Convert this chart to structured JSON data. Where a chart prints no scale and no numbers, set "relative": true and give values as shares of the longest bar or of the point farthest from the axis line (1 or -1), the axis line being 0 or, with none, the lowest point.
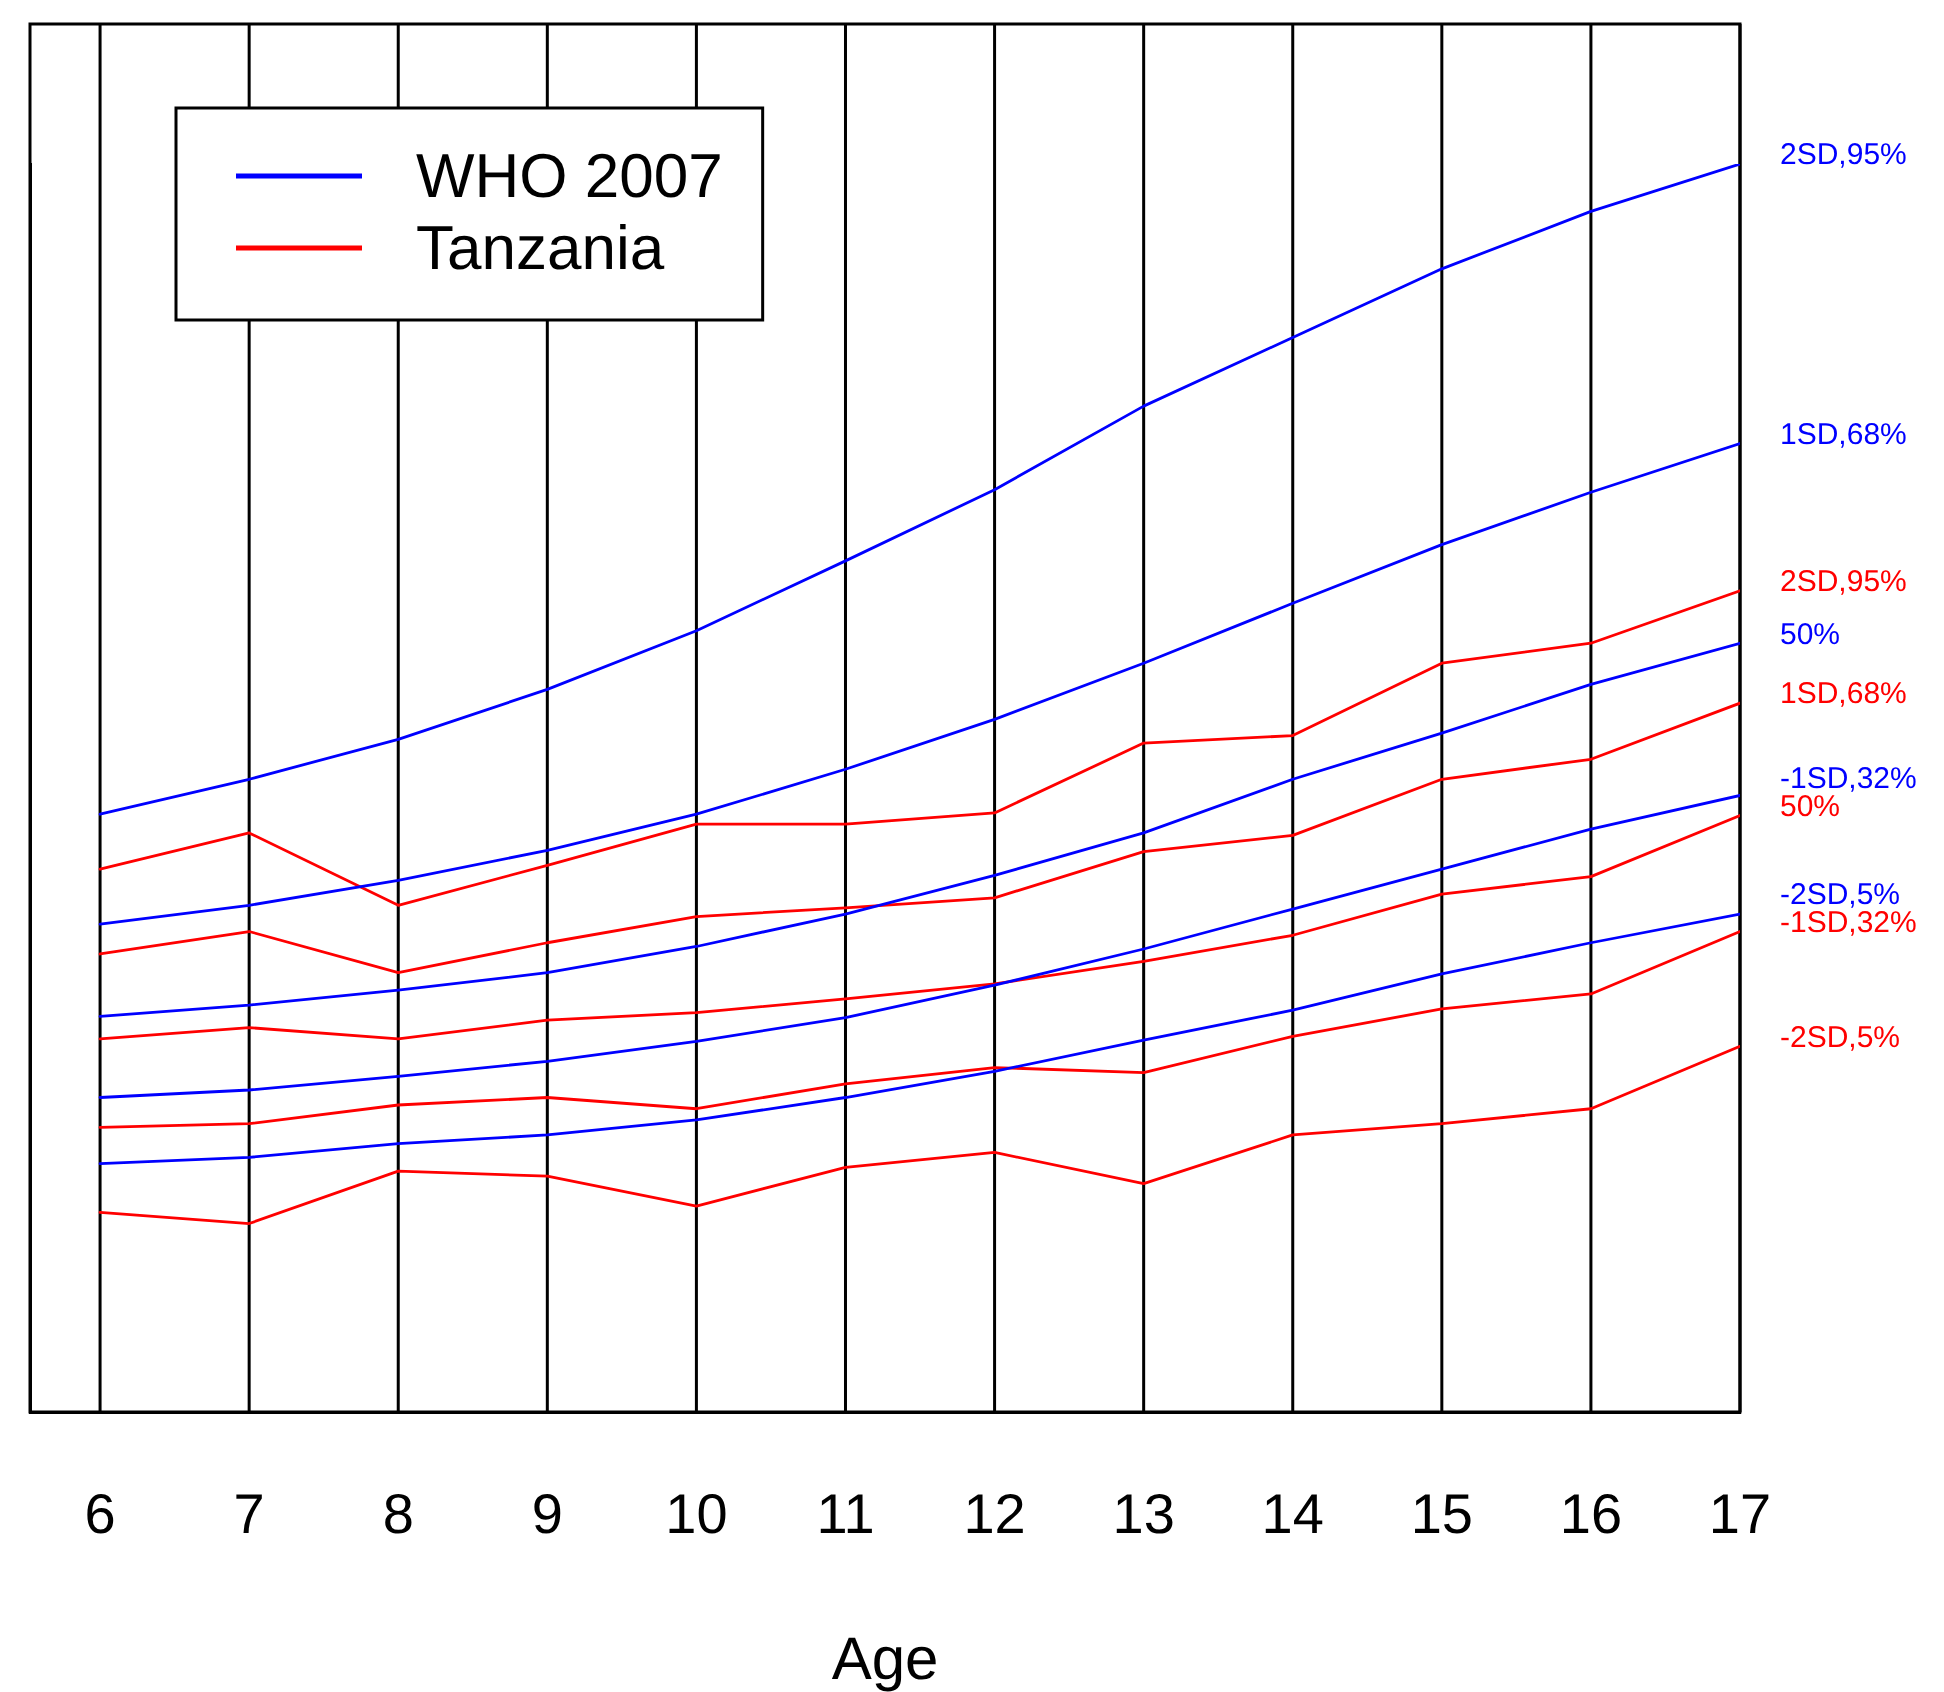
{
  "chart_data": {
    "type": "line",
    "xlabel": "Age",
    "relative": true,
    "tick_labels": "x",
    "grid": true,
    "legend": "top left",
    "x": [
      6,
      7,
      8,
      9,
      10,
      11,
      12,
      13,
      14,
      15,
      16,
      17
    ],
    "xlim": [
      5.53,
      17
    ],
    "xticks": [
      6,
      7,
      8,
      9,
      10,
      11,
      12,
      13,
      14,
      15,
      16,
      17
    ],
    "series": [
      {
        "name": "WHO 2007",
        "color": "#0000ff",
        "values": [
          0.479,
          0.507,
          0.539,
          0.579,
          0.626,
          0.682,
          0.739,
          0.806,
          0.861,
          0.916,
          0.962,
          1.0
        ]
      },
      {
        "color": "#0000ff",
        "values": [
          0.391,
          0.406,
          0.426,
          0.45,
          0.479,
          0.515,
          0.555,
          0.6,
          0.648,
          0.695,
          0.737,
          0.776
        ]
      },
      {
        "color": "#0000ff",
        "values": [
          0.317,
          0.326,
          0.338,
          0.352,
          0.373,
          0.399,
          0.43,
          0.464,
          0.507,
          0.544,
          0.583,
          0.616
        ]
      },
      {
        "color": "#0000ff",
        "values": [
          0.252,
          0.258,
          0.269,
          0.281,
          0.297,
          0.316,
          0.342,
          0.371,
          0.403,
          0.435,
          0.467,
          0.494
        ]
      },
      {
        "color": "#0000ff",
        "values": [
          0.199,
          0.204,
          0.215,
          0.222,
          0.234,
          0.252,
          0.273,
          0.298,
          0.322,
          0.351,
          0.376,
          0.399
        ]
      },
      {
        "name": "Tanzania",
        "color": "#ff0000",
        "values": [
          0.435,
          0.464,
          0.406,
          0.438,
          0.471,
          0.471,
          0.48,
          0.536,
          0.542,
          0.6,
          0.616,
          0.658
        ]
      },
      {
        "color": "#ff0000",
        "values": [
          0.367,
          0.385,
          0.352,
          0.376,
          0.397,
          0.404,
          0.412,
          0.449,
          0.462,
          0.507,
          0.523,
          0.568
        ]
      },
      {
        "color": "#ff0000",
        "values": [
          0.299,
          0.308,
          0.299,
          0.314,
          0.32,
          0.331,
          0.343,
          0.361,
          0.382,
          0.415,
          0.429,
          0.478
        ]
      },
      {
        "color": "#ff0000",
        "values": [
          0.228,
          0.231,
          0.246,
          0.252,
          0.243,
          0.263,
          0.276,
          0.272,
          0.301,
          0.323,
          0.335,
          0.385
        ]
      },
      {
        "color": "#ff0000",
        "values": [
          0.16,
          0.151,
          0.193,
          0.189,
          0.165,
          0.196,
          0.208,
          0.183,
          0.222,
          0.231,
          0.243,
          0.293
        ]
      }
    ],
    "annotations": [
      "2SD,95%",
      "1SD,68%",
      "50%",
      "-1SD,32%",
      "-2SD,5%",
      "2SD,95%",
      "1SD,68%",
      "50%",
      "-1SD,32%",
      "-2SD,5%"
    ]
  }
}
